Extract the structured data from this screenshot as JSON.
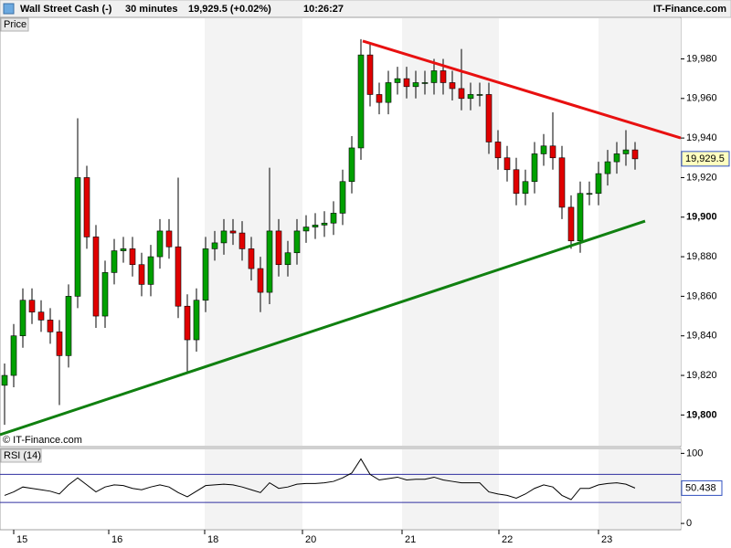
{
  "header": {
    "title": "Wall Street Cash (-)",
    "interval": "30 minutes",
    "quote": "19,929.5 (+0.02%)",
    "time": "10:26:27",
    "brand": "IT-Finance.com"
  },
  "chart_data": [
    {
      "type": "candlestick",
      "label": "Price",
      "watermark": "© IT-Finance.com",
      "up_color": "#00a000",
      "down_color": "#e00000",
      "x": [
        0,
        1,
        2,
        3,
        4,
        5,
        6,
        7,
        8,
        9,
        10,
        11,
        12,
        13,
        14,
        15,
        16,
        17,
        18,
        19,
        20,
        21,
        22,
        23,
        24,
        25,
        26,
        27,
        28,
        29,
        30,
        31,
        32,
        33,
        34,
        35,
        36,
        37,
        38,
        39,
        40,
        41,
        42,
        43,
        44,
        45,
        46,
        47,
        48,
        49,
        50,
        51,
        52,
        53,
        54,
        55,
        56,
        57,
        58,
        59,
        60,
        61,
        62,
        63,
        64,
        65,
        66,
        67,
        68,
        69
      ],
      "open": [
        19815,
        19820,
        19840,
        19858,
        19852,
        19848,
        19842,
        19830,
        19860,
        19920,
        19890,
        19850,
        19872,
        19883,
        19884,
        19876,
        19866,
        19880,
        19893,
        19885,
        19855,
        19838,
        19858,
        19884,
        19887,
        19893,
        19892,
        19884,
        19874,
        19862,
        19893,
        19876,
        19882,
        19893,
        19895,
        19896,
        19897,
        19902,
        19918,
        19935,
        19982,
        19962,
        19958,
        19968,
        19970,
        19966,
        19968,
        19968,
        19974,
        19968,
        19965,
        19960,
        19962,
        19962,
        19938,
        19930,
        19924,
        19912,
        19918,
        19932,
        19936,
        19930,
        19905,
        19888,
        19912,
        19912,
        19922,
        19928,
        19932,
        19934
      ],
      "high": [
        19826,
        19846,
        19864,
        19864,
        19858,
        19854,
        19848,
        19866,
        19950,
        19926,
        19896,
        19878,
        19889,
        19890,
        19890,
        19882,
        19886,
        19899,
        19899,
        19920,
        19861,
        19864,
        19890,
        19893,
        19899,
        19899,
        19898,
        19890,
        19880,
        19925,
        19899,
        19888,
        19899,
        19901,
        19902,
        19903,
        19908,
        19924,
        19941,
        19990,
        19988,
        19968,
        19974,
        19976,
        19976,
        19974,
        19974,
        19980,
        19980,
        19974,
        19985,
        19968,
        19968,
        19968,
        19944,
        19936,
        19930,
        19924,
        19938,
        19942,
        19953,
        19936,
        19911,
        19918,
        19918,
        19928,
        19934,
        19938,
        19944,
        19938
      ],
      "low": [
        19795,
        19814,
        19834,
        19846,
        19842,
        19836,
        19805,
        19824,
        19854,
        19884,
        19844,
        19844,
        19866,
        19877,
        19870,
        19860,
        19860,
        19874,
        19879,
        19849,
        19822,
        19832,
        19852,
        19878,
        19881,
        19886,
        19878,
        19868,
        19852,
        19856,
        19870,
        19870,
        19876,
        19887,
        19889,
        19890,
        19891,
        19896,
        19912,
        19929,
        19956,
        19952,
        19952,
        19962,
        19960,
        19960,
        19962,
        19962,
        19962,
        19959,
        19954,
        19954,
        19956,
        19932,
        19924,
        19918,
        19906,
        19906,
        19912,
        19926,
        19924,
        19899,
        19884,
        19882,
        19906,
        19906,
        19916,
        19922,
        19926,
        19924
      ],
      "close": [
        19820,
        19840,
        19858,
        19852,
        19848,
        19842,
        19830,
        19860,
        19920,
        19890,
        19850,
        19872,
        19883,
        19884,
        19876,
        19866,
        19880,
        19893,
        19885,
        19855,
        19838,
        19858,
        19884,
        19887,
        19893,
        19892,
        19884,
        19874,
        19862,
        19893,
        19876,
        19882,
        19893,
        19895,
        19896,
        19897,
        19902,
        19918,
        19935,
        19982,
        19962,
        19958,
        19968,
        19970,
        19966,
        19968,
        19968,
        19974,
        19968,
        19965,
        19960,
        19962,
        19962,
        19938,
        19930,
        19924,
        19912,
        19918,
        19932,
        19936,
        19930,
        19905,
        19888,
        19912,
        19912,
        19922,
        19928,
        19932,
        19934,
        19929.5
      ],
      "last_price": {
        "value": 19929.5,
        "label": "19,929.5"
      },
      "trendlines": [
        {
          "color": "#e81010",
          "x": [
            39.2,
            74
          ],
          "y": [
            19989,
            19940
          ]
        },
        {
          "color": "#108010",
          "x": [
            -0.5,
            70.1
          ],
          "y": [
            19790,
            19898
          ]
        }
      ],
      "xlim": [
        -0.5,
        74
      ],
      "ylim": [
        19784,
        20001
      ],
      "xticks": [
        {
          "value": 1,
          "label": "15"
        },
        {
          "value": 11.4,
          "label": "16"
        },
        {
          "value": 21.9,
          "label": "18"
        },
        {
          "value": 32.6,
          "label": "20"
        },
        {
          "value": 43.5,
          "label": "21"
        },
        {
          "value": 54.1,
          "label": "22"
        },
        {
          "value": 65,
          "label": "23"
        }
      ],
      "yticks": [
        {
          "value": 19800,
          "label": "19,800"
        },
        {
          "value": 19820,
          "label": "19,820"
        },
        {
          "value": 19840,
          "label": "19,840"
        },
        {
          "value": 19860,
          "label": "19,860"
        },
        {
          "value": 19880,
          "label": "19,880"
        },
        {
          "value": 19900,
          "label": "19,900"
        },
        {
          "value": 19920,
          "label": "19,920"
        },
        {
          "value": 19940,
          "label": "19,940"
        },
        {
          "value": 19960,
          "label": "19,960"
        },
        {
          "value": 19980,
          "label": "19,980"
        }
      ]
    },
    {
      "type": "line",
      "label": "RSI (14)",
      "color": "#000000",
      "x": [
        0,
        1,
        2,
        3,
        4,
        5,
        6,
        7,
        8,
        9,
        10,
        11,
        12,
        13,
        14,
        15,
        16,
        17,
        18,
        19,
        20,
        21,
        22,
        23,
        24,
        25,
        26,
        27,
        28,
        29,
        30,
        31,
        32,
        33,
        34,
        35,
        36,
        37,
        38,
        39,
        40,
        41,
        42,
        43,
        44,
        45,
        46,
        47,
        48,
        49,
        50,
        51,
        52,
        53,
        54,
        55,
        56,
        57,
        58,
        59,
        60,
        61,
        62,
        63,
        64,
        65,
        66,
        67,
        68,
        69
      ],
      "values": [
        40,
        45,
        52,
        50,
        48,
        46,
        42,
        55,
        65,
        55,
        45,
        52,
        55,
        54,
        50,
        48,
        52,
        55,
        52,
        44,
        38,
        46,
        54,
        55,
        56,
        55,
        52,
        48,
        44,
        58,
        50,
        52,
        56,
        57,
        57,
        58,
        60,
        65,
        72,
        92,
        70,
        62,
        64,
        66,
        62,
        63,
        63,
        66,
        62,
        60,
        58,
        58,
        58,
        45,
        42,
        40,
        36,
        42,
        50,
        55,
        52,
        40,
        34,
        50,
        50,
        55,
        57,
        58,
        56,
        50.438
      ],
      "last_value": 50.438,
      "levels": [
        30,
        70
      ],
      "level_color": "#3030a0",
      "xlim": [
        -0.5,
        74
      ],
      "ylim": [
        -9,
        107
      ],
      "yticks": [
        0,
        100
      ]
    }
  ]
}
